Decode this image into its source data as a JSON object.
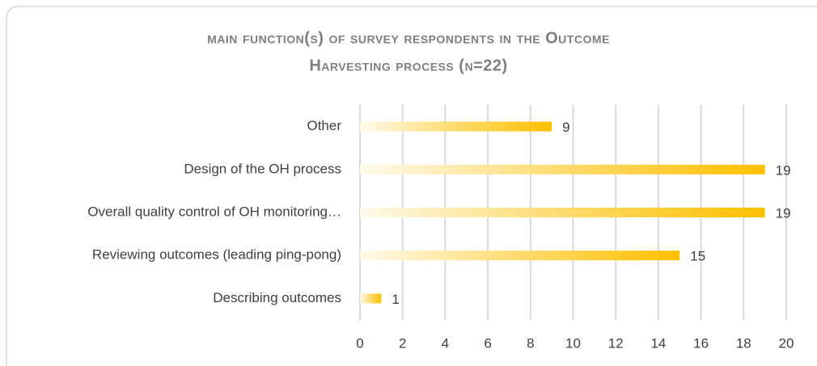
{
  "chart_data": {
    "type": "bar",
    "orientation": "horizontal",
    "title_lines": [
      "main function(s) of survey respondents in the Outcome",
      "Harvesting process (n=22)"
    ],
    "categories": [
      "Other",
      "Design of the OH process",
      "Overall quality control of OH monitoring…",
      "Reviewing outcomes (leading ping-pong)",
      "Describing outcomes"
    ],
    "values": [
      9,
      19,
      19,
      15,
      1
    ],
    "color": "#ffc000",
    "xlim": [
      0,
      20
    ],
    "xticks": [
      0,
      2,
      4,
      6,
      8,
      10,
      12,
      14,
      16,
      18,
      20
    ],
    "grid": true
  }
}
